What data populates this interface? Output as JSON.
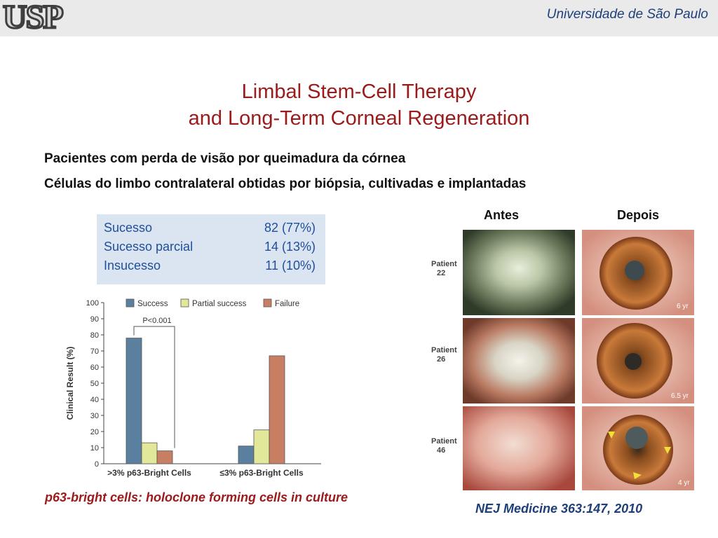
{
  "header": {
    "logo_text": "USP",
    "university_name": "Universidade de São Paulo"
  },
  "title": {
    "line1": "Limbal Stem-Cell Therapy",
    "line2": "and Long-Term Corneal Regeneration"
  },
  "bullets": [
    "Pacientes com perda de visão por queimadura da córnea",
    "Células do limbo contralateral obtidas por biópsia, cultivadas e implantadas"
  ],
  "results_table": [
    {
      "label": "Sucesso",
      "value": "82  (77%)"
    },
    {
      "label": "Sucesso parcial",
      "value": "14  (13%)"
    },
    {
      "label": "Insucesso",
      "value": "11  (10%)"
    }
  ],
  "colors": {
    "success": "#5b7f9e",
    "partial": "#e3e79a",
    "failure": "#c87e62"
  },
  "chart_data": {
    "type": "bar",
    "ylabel": "Clinical Result (%)",
    "ylim": [
      0,
      100
    ],
    "yticks": [
      0,
      10,
      20,
      30,
      40,
      50,
      60,
      70,
      80,
      90,
      100
    ],
    "categories": [
      ">3% p63-Bright Cells",
      "≤3% p63-Bright Cells"
    ],
    "series": [
      {
        "name": "Success",
        "values": [
          78,
          11
        ]
      },
      {
        "name": "Partial success",
        "values": [
          13,
          21
        ]
      },
      {
        "name": "Failure",
        "values": [
          8,
          67
        ]
      }
    ],
    "annotation": "P<0.001"
  },
  "chart_footnote": "p63-bright cells: holoclone forming cells in culture",
  "photos": {
    "col_before": "Antes",
    "col_after": "Depois",
    "patients": [
      {
        "label": "Patient\n22",
        "duration": "6 yr"
      },
      {
        "label": "Patient\n26",
        "duration": "6.5 yr"
      },
      {
        "label": "Patient\n46",
        "duration": "4 yr"
      }
    ]
  },
  "citation": "NEJ Medicine 363:147, 2010"
}
